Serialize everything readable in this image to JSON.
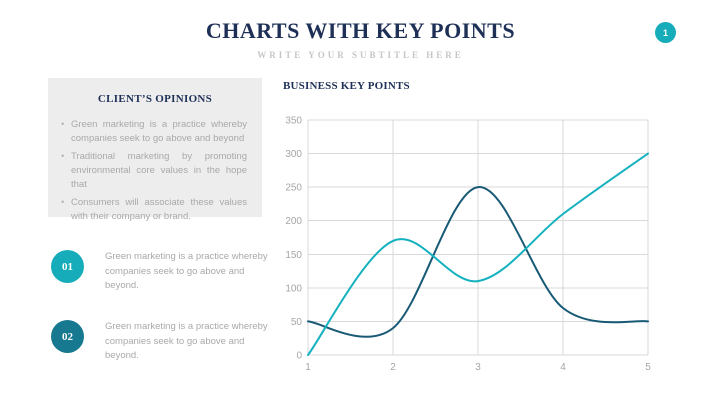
{
  "slide": {
    "title": "CHARTS WITH KEY POINTS",
    "subtitle": "WRITE YOUR SUBTITLE HERE",
    "page_number": "1"
  },
  "opinions": {
    "heading": "CLIENT’S OPINIONS",
    "bullet_char": "•",
    "bullets": [
      "Green marketing is a practice whereby companies seek to go above and beyond",
      "Traditional marketing by promoting environmental core values in the hope that",
      "Consumers will associate these values with their company or brand."
    ]
  },
  "key_points": [
    {
      "number": "01",
      "color": "#17acb9",
      "text": "Green marketing is a practice whereby companies seek to go above and beyond."
    },
    {
      "number": "02",
      "color": "#16798f",
      "text": "Green marketing is a practice whereby companies seek to go above and beyond."
    }
  ],
  "chart": {
    "heading": "BUSINESS KEY POINTS"
  },
  "chart_data": {
    "type": "line",
    "title": "",
    "xlabel": "",
    "ylabel": "",
    "x": [
      1,
      2,
      3,
      4,
      5
    ],
    "series": [
      {
        "name": "dark-series",
        "color": "#185a75",
        "values": [
          50,
          40,
          250,
          70,
          50
        ]
      },
      {
        "name": "teal-series",
        "color": "#14b1bf",
        "values": [
          0,
          170,
          110,
          210,
          300
        ]
      }
    ],
    "ylim": [
      0,
      350
    ],
    "ytick_step": 50,
    "grid": true,
    "smooth": true,
    "legend_position": "none",
    "grid_color": "#d9d9d9",
    "axis_label_color": "#a6a6a6"
  },
  "colors": {
    "badge": "#17acb9",
    "heading_navy": "#1f3057",
    "panel_gray": "#ededee"
  }
}
